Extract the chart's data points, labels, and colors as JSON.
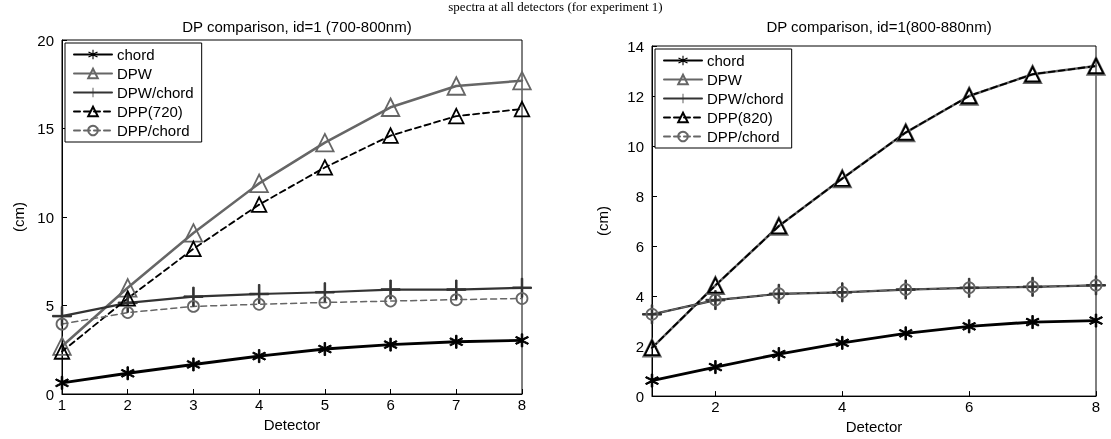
{
  "chart_data": [
    {
      "type": "line",
      "title": "DP comparison, id=1 (700-800nm)",
      "annotations": [
        "spectra at all detectors (for experiment 1)"
      ],
      "xlabel": "Detector",
      "ylabel": "(cm)",
      "x": [
        1,
        2,
        3,
        4,
        5,
        6,
        7,
        8
      ],
      "xlim": [
        1,
        8
      ],
      "xticks": [
        1,
        2,
        3,
        4,
        5,
        6,
        7,
        8
      ],
      "ylim": [
        0,
        20
      ],
      "yticks": [
        0,
        5,
        10,
        15,
        20
      ],
      "legend": "top left",
      "series": [
        {
          "name": "chord",
          "color": "#000000",
          "marker": "star",
          "line_style": "solid",
          "values": [
            0.63,
            1.17,
            1.67,
            2.14,
            2.54,
            2.79,
            2.95,
            3.03
          ]
        },
        {
          "name": "DPW",
          "color": "#666666",
          "marker": "triangle",
          "line_style": "solid",
          "values": [
            2.7,
            6.0,
            9.1,
            11.9,
            14.2,
            16.2,
            17.4,
            17.7
          ]
        },
        {
          "name": "DPW/chord",
          "color": "#333333",
          "marker": "cross",
          "line_style": "solid",
          "values": [
            4.4,
            5.15,
            5.5,
            5.65,
            5.75,
            5.9,
            5.9,
            6.0
          ]
        },
        {
          "name": "DPP(720)",
          "color": "#000000",
          "marker": "triangle",
          "line_style": "dashed",
          "values": [
            2.4,
            5.4,
            8.2,
            10.7,
            12.8,
            14.6,
            15.7,
            16.1
          ]
        },
        {
          "name": "DPP/chord",
          "color": "#666666",
          "marker": "circle",
          "line_style": "dashed",
          "values": [
            3.95,
            4.6,
            4.95,
            5.07,
            5.17,
            5.25,
            5.33,
            5.4
          ]
        }
      ]
    },
    {
      "type": "line",
      "title": "DP comparison, id=1(800-880nm)",
      "xlabel": "Detector",
      "ylabel": "(cm)",
      "x": [
        1,
        2,
        3,
        4,
        5,
        6,
        7,
        8
      ],
      "xlim": [
        1,
        8
      ],
      "xticks": [
        2,
        4,
        6,
        8
      ],
      "ylim": [
        0,
        14
      ],
      "yticks": [
        0,
        2,
        4,
        6,
        8,
        10,
        12,
        14
      ],
      "legend": "top left",
      "series": [
        {
          "name": "chord",
          "color": "#000000",
          "marker": "star",
          "line_style": "solid",
          "values": [
            0.62,
            1.16,
            1.68,
            2.13,
            2.51,
            2.79,
            2.96,
            3.02
          ]
        },
        {
          "name": "DPW",
          "color": "#666666",
          "marker": "triangle",
          "line_style": "solid",
          "values": [
            1.93,
            4.43,
            6.8,
            8.7,
            10.54,
            12.0,
            12.87,
            13.2
          ]
        },
        {
          "name": "DPW/chord",
          "color": "#333333",
          "marker": "cross",
          "line_style": "solid",
          "values": [
            3.27,
            3.84,
            4.09,
            4.15,
            4.26,
            4.33,
            4.37,
            4.43
          ]
        },
        {
          "name": "DPP(820)",
          "color": "#000000",
          "marker": "triangle",
          "line_style": "dashed",
          "values": [
            1.93,
            4.43,
            6.8,
            8.7,
            10.54,
            12.0,
            12.87,
            13.2
          ]
        },
        {
          "name": "DPP/chord",
          "color": "#666666",
          "marker": "circle",
          "line_style": "dashed",
          "values": [
            3.27,
            3.84,
            4.09,
            4.15,
            4.26,
            4.33,
            4.37,
            4.43
          ]
        }
      ]
    }
  ]
}
